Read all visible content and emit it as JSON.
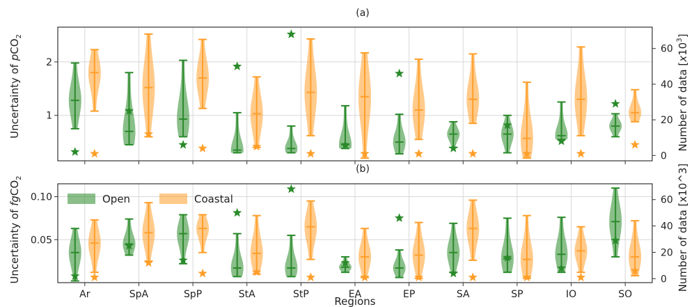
{
  "chart_data": [
    {
      "type": "violin",
      "panel_label": "(a)",
      "ylabel": "Uncertainty of pCO2",
      "ylabel_parts": [
        "Uncertainty of ",
        "p",
        "CO",
        "2"
      ],
      "y2label": "Number of data [x10^3]",
      "y2label_parts": [
        "Number of data [",
        "x",
        "10",
        "3",
        "]"
      ],
      "ylim": [
        0.15,
        2.65
      ],
      "yticks": [
        1,
        2
      ],
      "y2lim": [
        -3,
        72
      ],
      "y2ticks": [
        0,
        20,
        40,
        60
      ],
      "categories": [
        "Ar",
        "SpA",
        "SpP",
        "StA",
        "StP",
        "EA",
        "EP",
        "SA",
        "SP",
        "IO",
        "SO"
      ],
      "series": [
        {
          "name": "Open",
          "color": "#2a8a2a",
          "min": [
            0.75,
            0.45,
            0.6,
            0.3,
            0.3,
            0.38,
            0.28,
            0.4,
            0.3,
            0.55,
            0.6
          ],
          "median": [
            1.28,
            0.7,
            0.93,
            0.35,
            0.38,
            0.45,
            0.5,
            0.65,
            0.65,
            0.62,
            0.8
          ],
          "max": [
            1.98,
            1.8,
            2.03,
            1.05,
            0.8,
            1.18,
            1.02,
            0.88,
            1.0,
            1.25,
            1.03
          ],
          "count": [
            2,
            25,
            6,
            50,
            68,
            6,
            46,
            4,
            17,
            8,
            29
          ]
        },
        {
          "name": "Coastal",
          "color": "#ff9f2a",
          "min": [
            1.08,
            0.6,
            1.13,
            0.4,
            0.62,
            0.2,
            0.55,
            0.85,
            0.2,
            0.62,
            0.88
          ],
          "median": [
            1.8,
            1.52,
            1.7,
            1.03,
            1.43,
            1.35,
            1.1,
            1.3,
            0.57,
            1.3,
            1.05
          ],
          "max": [
            2.23,
            2.52,
            2.42,
            1.72,
            2.43,
            2.17,
            2.05,
            2.15,
            1.62,
            2.28,
            1.48
          ],
          "count": [
            1,
            12,
            4,
            5,
            1,
            1,
            1,
            1,
            1,
            1,
            6
          ]
        }
      ]
    },
    {
      "type": "violin",
      "panel_label": "(b)",
      "ylabel": "Uncertainty of fgCO2",
      "ylabel_parts": [
        "Uncertainty of ",
        "fg",
        "CO",
        "2"
      ],
      "y2label": "Number of data [x10^3]",
      "ylim": [
        0.0,
        0.115
      ],
      "yticks": [
        0.05,
        0.1
      ],
      "ytick_labels": [
        "0.05",
        "0.10"
      ],
      "y2lim": [
        -3,
        72
      ],
      "y2ticks": [
        0,
        20,
        40,
        60
      ],
      "xlabel": "Regions",
      "categories": [
        "Ar",
        "SpA",
        "SpP",
        "StA",
        "StP",
        "EA",
        "EP",
        "SA",
        "SP",
        "IO",
        "SO"
      ],
      "legend": {
        "placement": "top-left",
        "entries": [
          "Open",
          "Coastal"
        ]
      },
      "series": [
        {
          "name": "Open",
          "color": "#2a8a2a",
          "min": [
            0.002,
            0.032,
            0.022,
            0.007,
            0.007,
            0.012,
            0.006,
            0.012,
            0.012,
            0.012,
            0.03
          ],
          "median": [
            0.035,
            0.045,
            0.057,
            0.017,
            0.017,
            0.018,
            0.017,
            0.035,
            0.028,
            0.033,
            0.071
          ],
          "max": [
            0.063,
            0.074,
            0.079,
            0.057,
            0.055,
            0.03,
            0.038,
            0.069,
            0.075,
            0.076,
            0.11
          ],
          "count": [
            2,
            25,
            14,
            50,
            68,
            12,
            46,
            4,
            16,
            8,
            29
          ]
        },
        {
          "name": "Coastal",
          "color": "#ff9f2a",
          "min": [
            0.012,
            0.025,
            0.035,
            0.01,
            0.027,
            0.006,
            0.005,
            0.026,
            0.005,
            0.012,
            0.008
          ],
          "median": [
            0.046,
            0.058,
            0.063,
            0.034,
            0.065,
            0.03,
            0.032,
            0.063,
            0.027,
            0.037,
            0.03
          ],
          "max": [
            0.073,
            0.093,
            0.079,
            0.078,
            0.095,
            0.063,
            0.07,
            0.096,
            0.078,
            0.065,
            0.072
          ],
          "count": [
            1,
            12,
            4,
            5,
            1,
            1,
            1,
            1,
            1,
            1,
            6
          ]
        }
      ]
    }
  ]
}
